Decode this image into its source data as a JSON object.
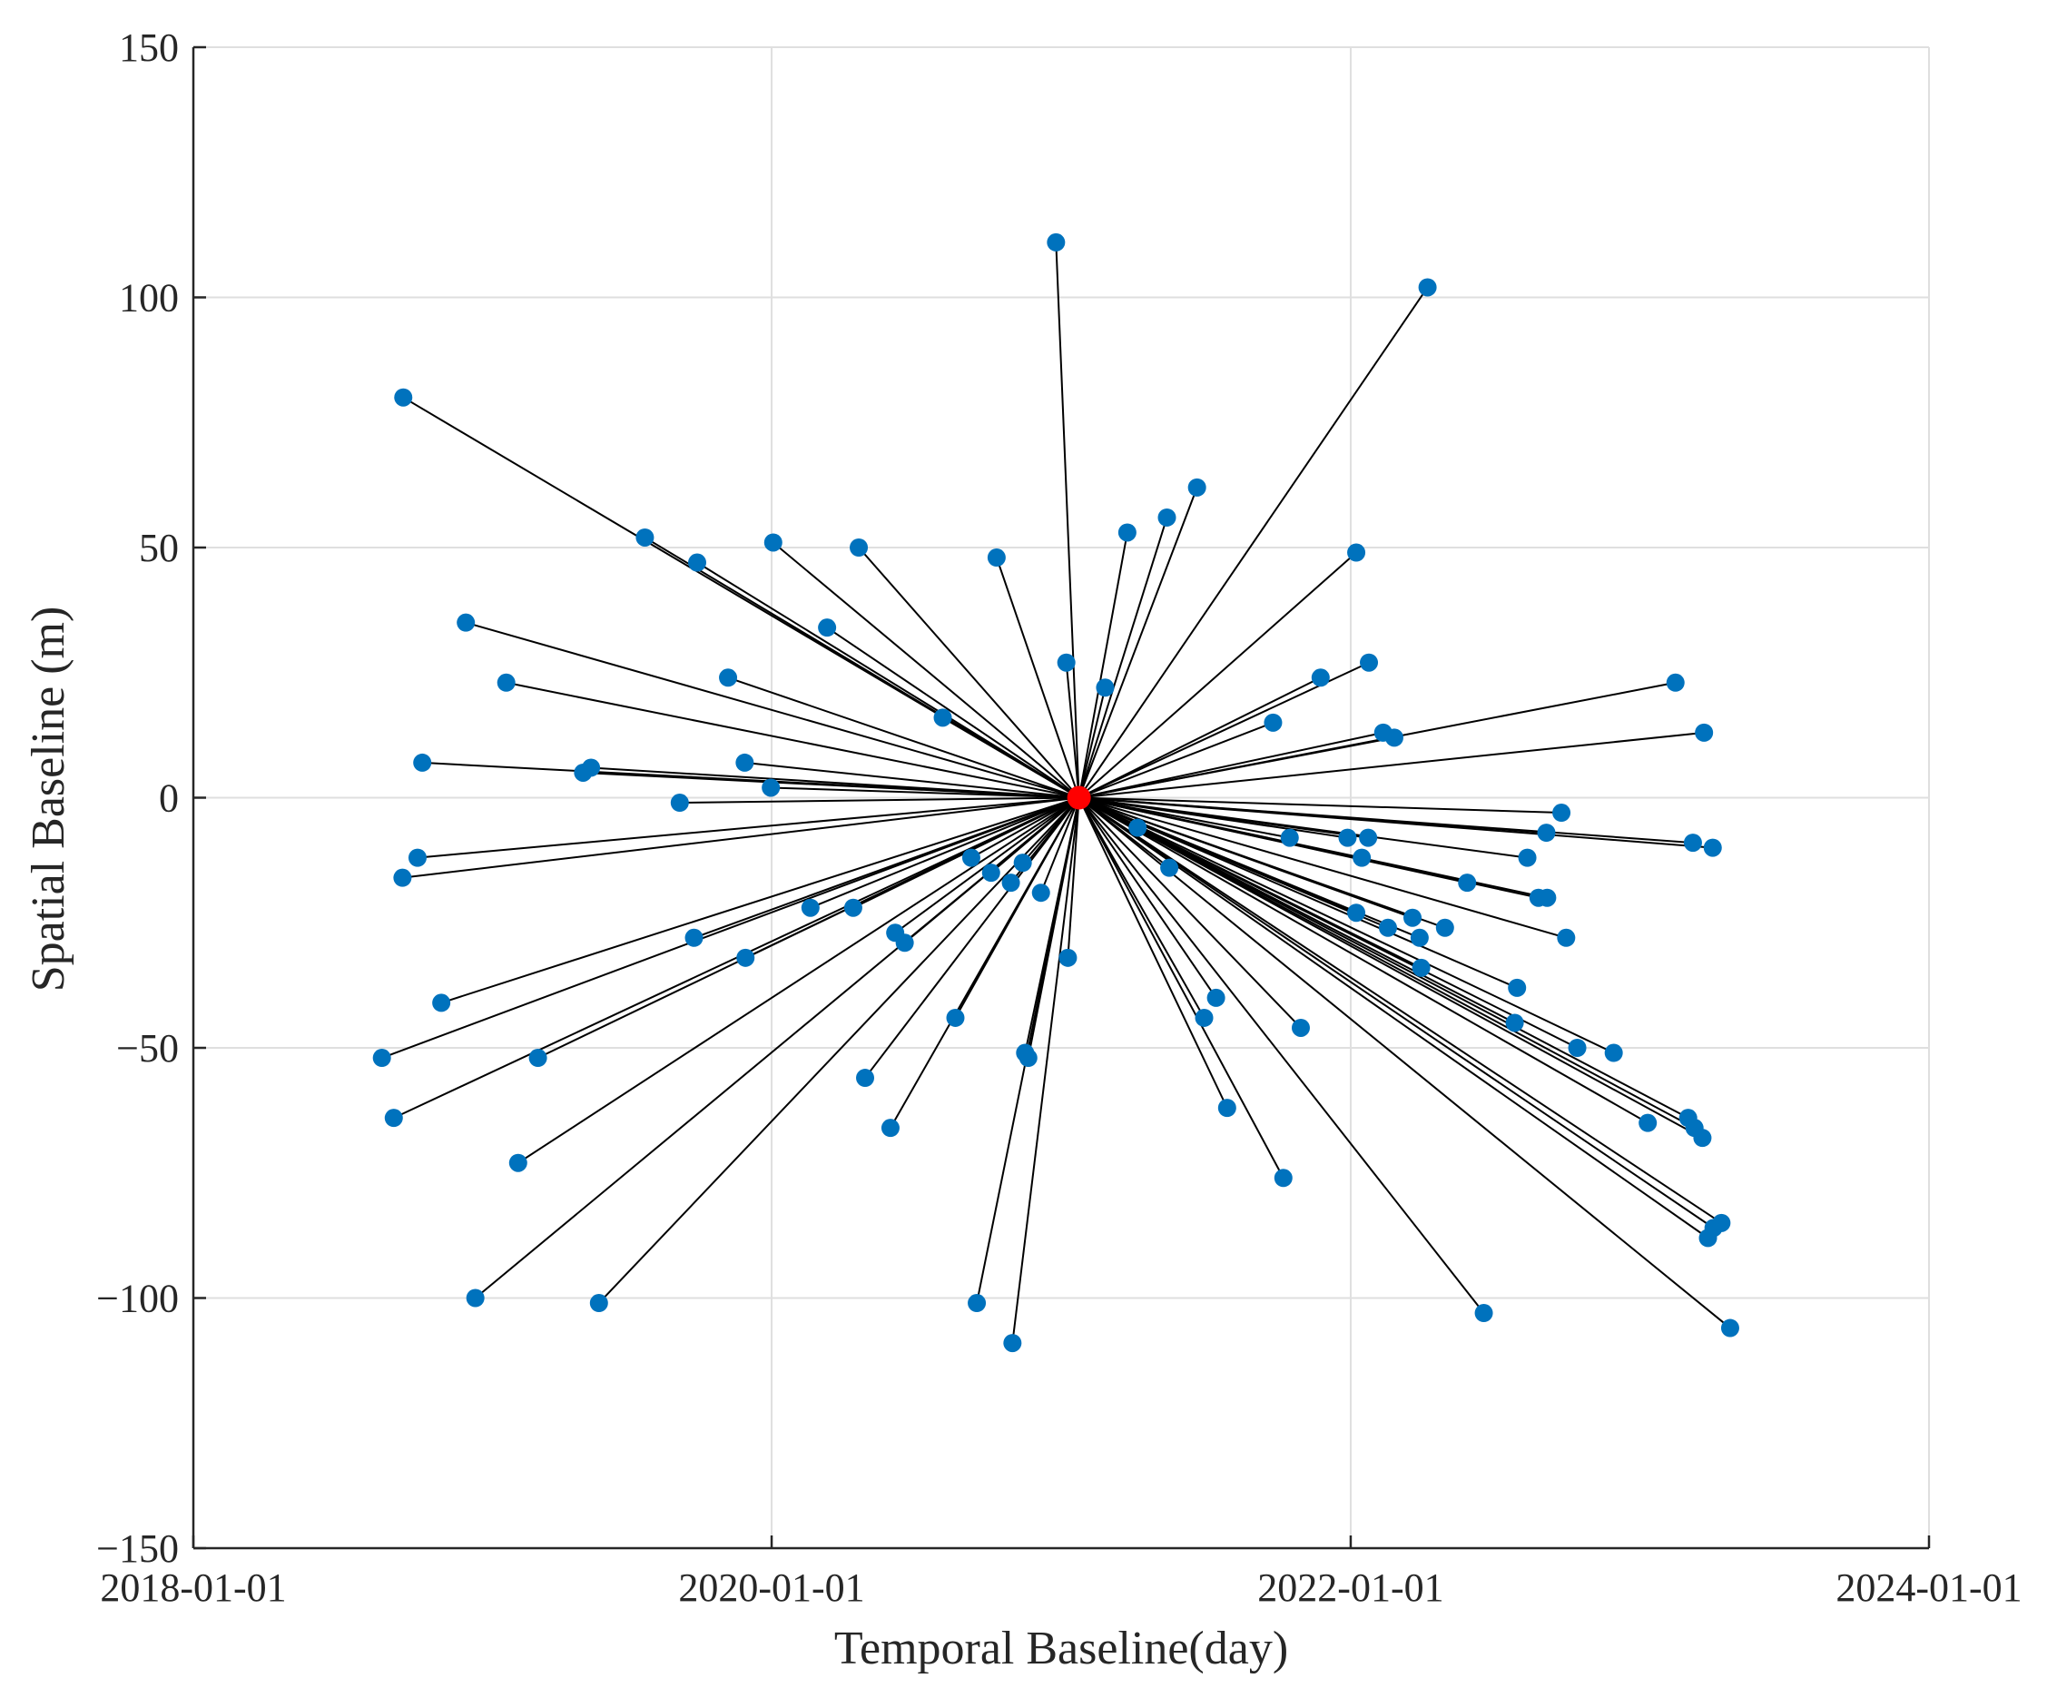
{
  "chart_data": {
    "type": "scatter",
    "title": "",
    "xlabel": "Temporal Baseline(day)",
    "ylabel": "Spatial Baseline (m)",
    "x_axis_type": "date",
    "xlim": [
      "2018-01-01",
      "2024-01-01"
    ],
    "ylim": [
      -150,
      150
    ],
    "x_ticks": [
      "2018-01-01",
      "2020-01-01",
      "2022-01-01",
      "2024-01-01"
    ],
    "y_ticks": [
      150,
      100,
      50,
      0,
      -50,
      -100,
      -150
    ],
    "y_tick_labels": [
      "150",
      "100",
      "50",
      "0",
      "−50",
      "−100",
      "−150"
    ],
    "grid": true,
    "colors": {
      "secondary": "#0072BD",
      "master": "#FF0000",
      "edge": "#000000",
      "grid": "#DFDFDF"
    },
    "master": {
      "x": "2021-01-23",
      "y": 0
    },
    "secondary": {
      "x": [
        "2018-09-23",
        "2018-12-11",
        "2019-09-29",
        "2019-12-31",
        "2020-01-03",
        "2020-04-20",
        "2020-03-11",
        "2018-10-17",
        "2019-05-08",
        "2019-07-25",
        "2018-09-22",
        "2019-05-18",
        "2019-11-07",
        "2019-01-31",
        "2018-10-11",
        "2020-08-04",
        "2019-09-07",
        "2019-11-28",
        "2021-03-25",
        "2021-06-21",
        "2021-05-14",
        "2021-01-07",
        "2020-10-11",
        "2020-12-25",
        "2021-02-25",
        "2021-09-25",
        "2021-11-24",
        "2022-02-11",
        "2022-01-08",
        "2022-04-08",
        "2021-10-16",
        "2022-02-17",
        "2022-02-25",
        "2022-09-24",
        "2022-09-05",
        "2023-03-23",
        "2023-02-15",
        "2023-03-09",
        "2023-04-03",
        "2022-01-23",
        "2022-01-24",
        "2021-12-28",
        "2022-01-08",
        "2022-01-15",
        "2022-03-20",
        "2022-03-29",
        "2022-03-31",
        "2022-04-30",
        "2022-05-28",
        "2022-07-30",
        "2022-08-12",
        "2022-08-26",
        "2022-09-06",
        "2022-09-30",
        "2022-10-14",
        "2022-11-29",
        "2023-01-11",
        "2023-03-03",
        "2023-03-11",
        "2023-03-21",
        "2023-03-28",
        "2023-04-04",
        "2023-04-14",
        "2023-04-25",
        "2021-10-30",
        "2022-06-18",
        "2022-07-27",
        "2021-01-09",
        "2021-07-15",
        "2021-10-08",
        "2021-06-30",
        "2021-05-17",
        "2021-07-29",
        "2020-09-09",
        "2020-12-06",
        "2020-11-20",
        "2020-09-16",
        "2021-04-07",
        "2020-11-16",
        "2020-10-31",
        "2020-08-20",
        "2020-04-28",
        "2020-05-30",
        "2020-06-17",
        "2020-06-05",
        "2020-02-19",
        "2019-11-29",
        "2019-09-25",
        "2019-05-28",
        "2019-02-15",
        "2019-03-12",
        "2018-12-23",
        "2018-11-10",
        "2018-08-27",
        "2018-09-11",
        "2020-10-29",
        "2020-11-13",
        "2020-10-04",
        "2020-04-13"
      ],
      "y": [
        80,
        35,
        47,
        2,
        51,
        50,
        34,
        7,
        5,
        52,
        -16,
        6,
        24,
        23,
        -12,
        16,
        -1,
        7,
        53,
        62,
        56,
        27,
        48,
        111,
        22,
        15,
        24,
        13,
        49,
        102,
        -8,
        -26,
        12,
        -3,
        -7,
        13,
        23,
        -9,
        -10,
        -8,
        27,
        -8,
        -23,
        -12,
        -24,
        -28,
        -34,
        -26,
        -17,
        -38,
        -12,
        -20,
        -20,
        -28,
        -50,
        -51,
        -65,
        -64,
        -66,
        -68,
        -88,
        -86,
        -85,
        -106,
        -46,
        -103,
        -45,
        -32,
        -40,
        -76,
        -44,
        -14,
        -62,
        -12,
        -19,
        -52,
        -101,
        -6,
        -51,
        -109,
        -44,
        -56,
        -66,
        -29,
        -27,
        -22,
        -32,
        -28,
        -101,
        -73,
        -52,
        -100,
        -41,
        -52,
        -64,
        -17,
        -13,
        -15,
        -22
      ]
    }
  }
}
